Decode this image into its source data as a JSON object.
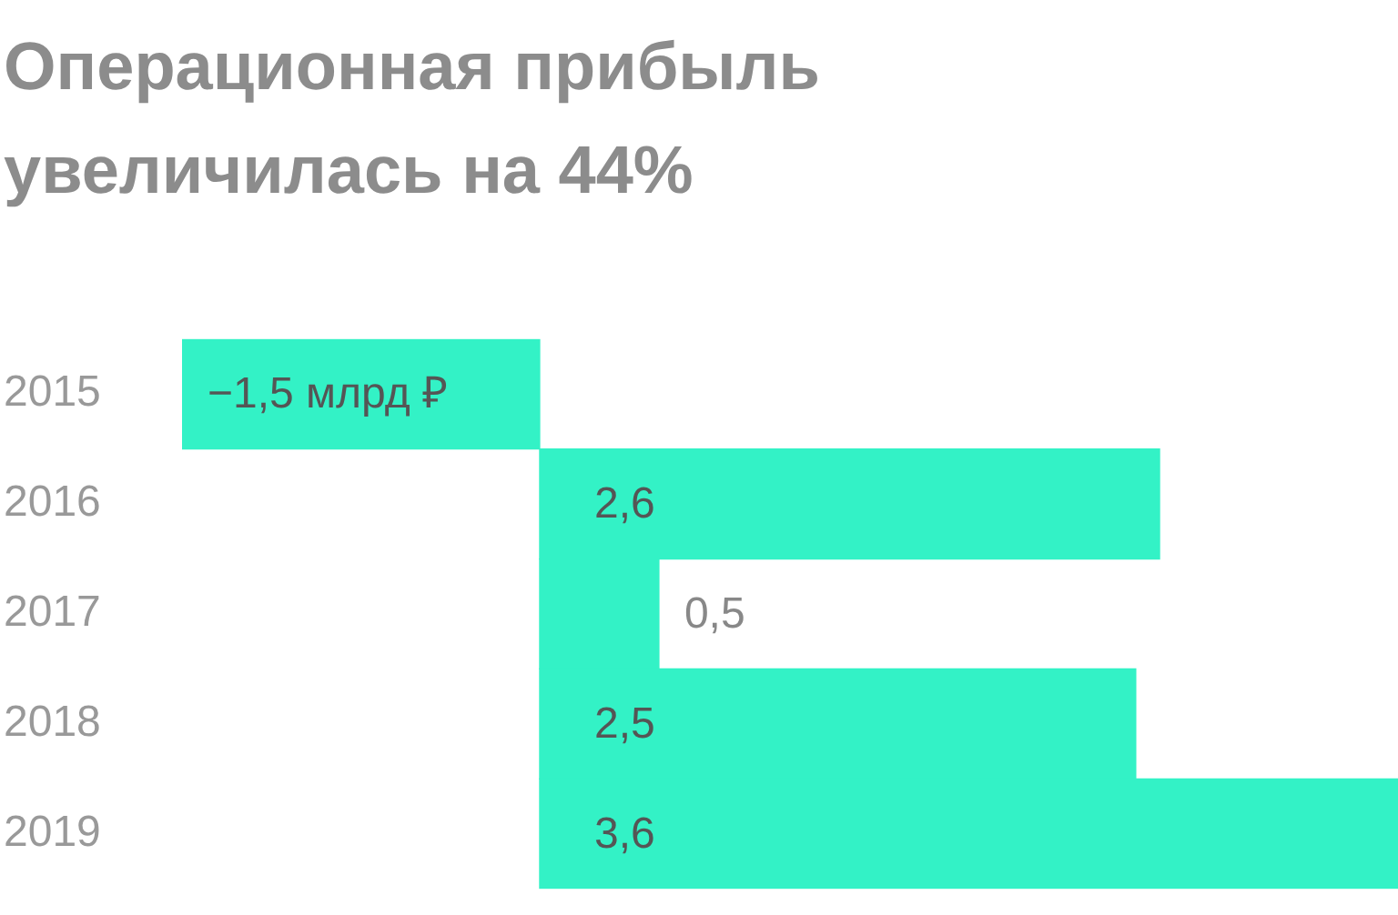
{
  "chart_data": {
    "type": "bar",
    "orientation": "horizontal",
    "title": "Операционная прибыль увеличилась на 44%",
    "categories": [
      "2015",
      "2016",
      "2017",
      "2018",
      "2019"
    ],
    "values": [
      -1.5,
      2.6,
      0.5,
      2.5,
      3.6
    ],
    "value_labels": [
      "−1,5 млрд ₽",
      "2,6",
      "0,5",
      "2,5",
      "3,6"
    ],
    "color": "#33f2c6",
    "legend": false
  }
}
